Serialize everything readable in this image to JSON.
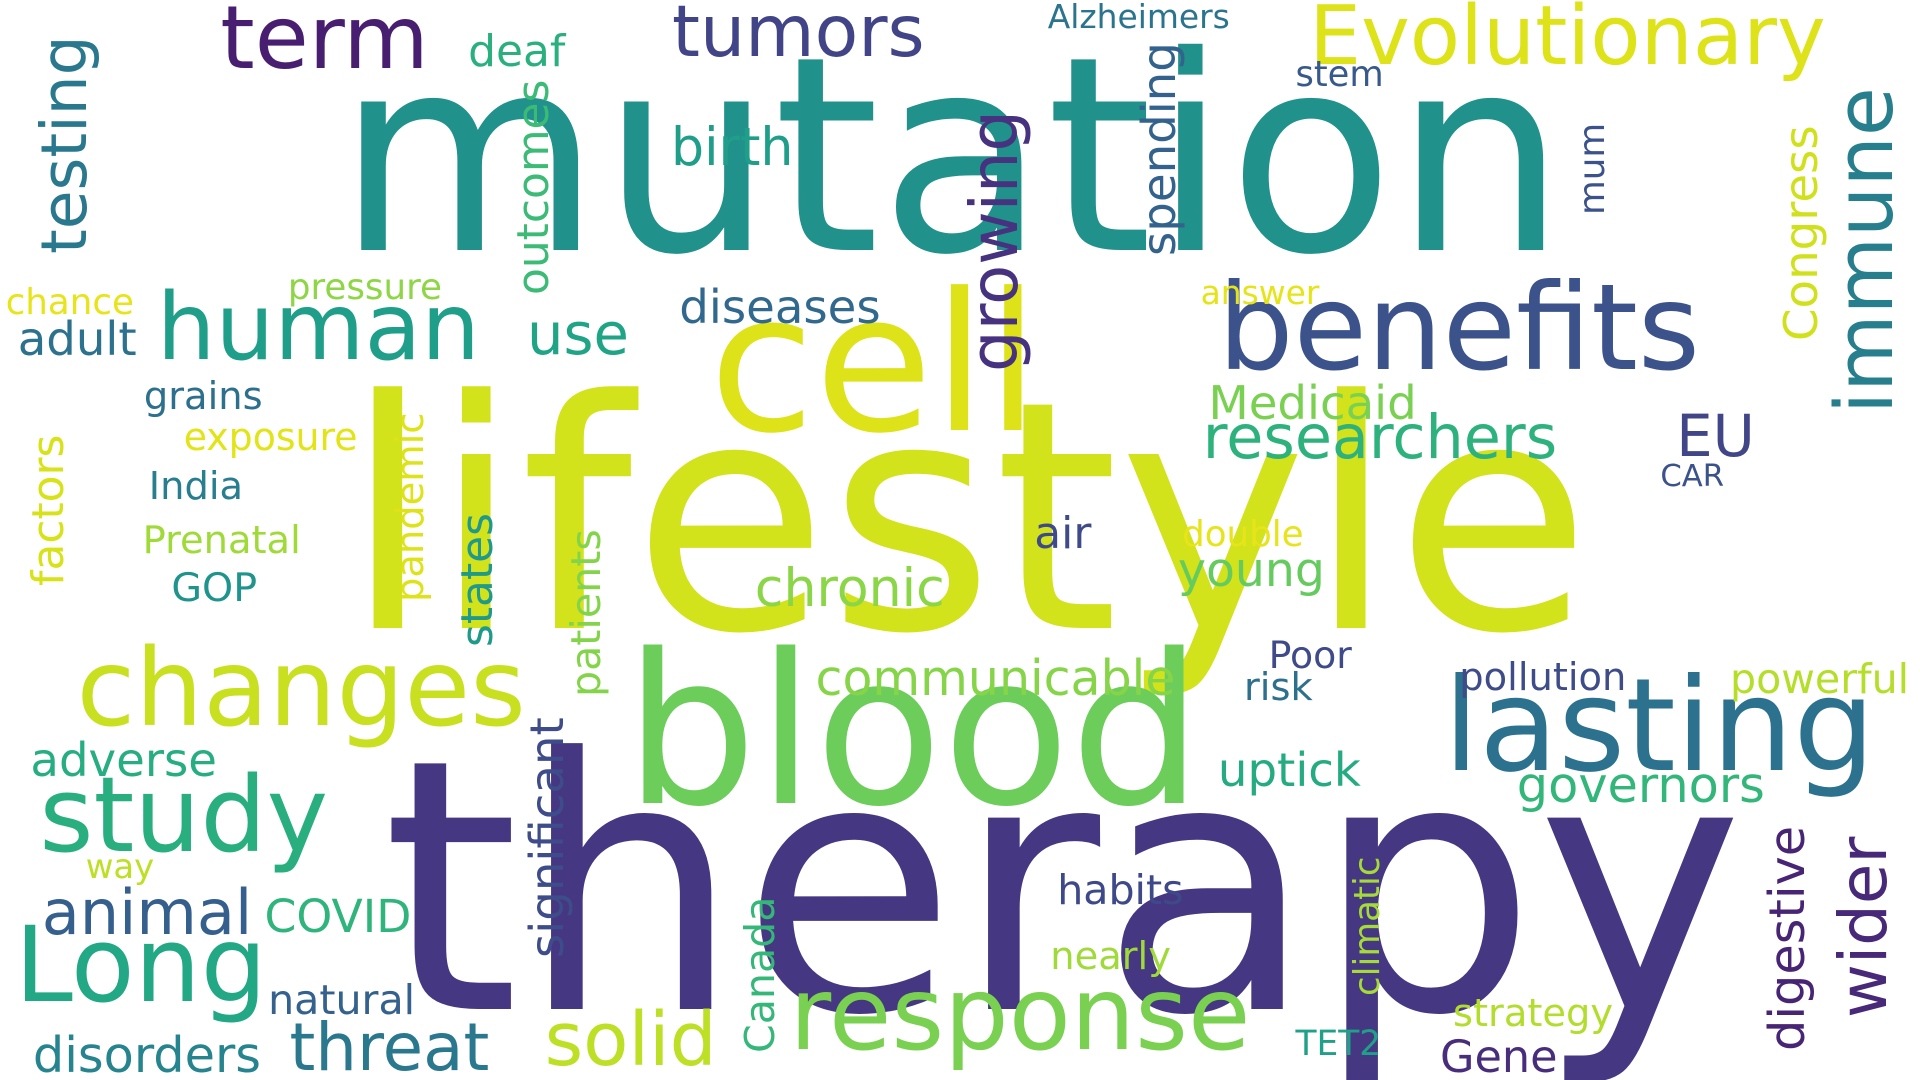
{
  "words": [
    {
      "text": "mutation",
      "color": "#21918c"
    },
    {
      "text": "lifestyle",
      "color": "#d2e21b"
    },
    {
      "text": "therapy",
      "color": "#453781"
    },
    {
      "text": "blood",
      "color": "#6ccd5a"
    },
    {
      "text": "cell",
      "color": "#dde318"
    },
    {
      "text": "benefits",
      "color": "#3b528b"
    },
    {
      "text": "human",
      "color": "#1f9e89"
    },
    {
      "text": "changes",
      "color": "#c8e020"
    },
    {
      "text": "response",
      "color": "#7ad151"
    },
    {
      "text": "lasting",
      "color": "#2c728e"
    },
    {
      "text": "term",
      "color": "#481f70"
    },
    {
      "text": "Long",
      "color": "#22a884"
    },
    {
      "text": "study",
      "color": "#29af7f"
    },
    {
      "text": "Evolutionary",
      "color": "#dde318"
    },
    {
      "text": "immune",
      "color": "#277f8e"
    },
    {
      "text": "tumors",
      "color": "#414487"
    },
    {
      "text": "solid",
      "color": "#bddf26"
    },
    {
      "text": "threat",
      "color": "#2a788e"
    },
    {
      "text": "animal",
      "color": "#355f8d"
    },
    {
      "text": "growing",
      "color": "#46327e"
    },
    {
      "text": "researchers",
      "color": "#2db27d"
    },
    {
      "text": "use",
      "color": "#20a486"
    },
    {
      "text": "testing",
      "color": "#2a788e"
    },
    {
      "text": "outcomes",
      "color": "#3bbb75"
    },
    {
      "text": "diseases",
      "color": "#31688e"
    },
    {
      "text": "spending",
      "color": "#33638d"
    },
    {
      "text": "Congress",
      "color": "#d0e11c"
    },
    {
      "text": "birth",
      "color": "#1f9e89"
    },
    {
      "text": "wider",
      "color": "#482878"
    },
    {
      "text": "digestive",
      "color": "#482475"
    },
    {
      "text": "significant",
      "color": "#3e4c8a"
    },
    {
      "text": "patients",
      "color": "#84d44b"
    },
    {
      "text": "communicable",
      "color": "#86d549"
    },
    {
      "text": "chronic",
      "color": "#8bd646"
    },
    {
      "text": "uptick",
      "color": "#25ab82"
    },
    {
      "text": "governors",
      "color": "#32b67a"
    },
    {
      "text": "young",
      "color": "#65cb5e"
    },
    {
      "text": "states",
      "color": "#1f9a8a"
    },
    {
      "text": "pandemic",
      "color": "#dde318"
    },
    {
      "text": "factors",
      "color": "#d8e219"
    },
    {
      "text": "climatic",
      "color": "#a5db36"
    },
    {
      "text": "Canada",
      "color": "#35b779"
    },
    {
      "text": "EU",
      "color": "#404688"
    },
    {
      "text": "Medicaid",
      "color": "#7ad151"
    },
    {
      "text": "adverse",
      "color": "#26ad81"
    },
    {
      "text": "COVID",
      "color": "#2fb47c"
    },
    {
      "text": "disorders",
      "color": "#25848e"
    },
    {
      "text": "Gene",
      "color": "#472d7b"
    },
    {
      "text": "adult",
      "color": "#2c728e"
    },
    {
      "text": "air",
      "color": "#3e4a89"
    },
    {
      "text": "mum",
      "color": "#3b528b"
    },
    {
      "text": "GOP",
      "color": "#1f948c"
    },
    {
      "text": "deaf",
      "color": "#2ab07f"
    },
    {
      "text": "habits",
      "color": "#3e4989"
    },
    {
      "text": "natural",
      "color": "#34618d"
    },
    {
      "text": "pollution",
      "color": "#3e4c8a"
    },
    {
      "text": "powerful",
      "color": "#b5de2b"
    },
    {
      "text": "pressure",
      "color": "#8ed645"
    },
    {
      "text": "Alzheimers",
      "color": "#2b748e"
    },
    {
      "text": "stem",
      "color": "#38598c"
    },
    {
      "text": "answer",
      "color": "#e5e419"
    },
    {
      "text": "chance",
      "color": "#e7e419"
    },
    {
      "text": "grains",
      "color": "#2d708e"
    },
    {
      "text": "exposure",
      "color": "#e2e418"
    },
    {
      "text": "India",
      "color": "#287d8e"
    },
    {
      "text": "Prenatal",
      "color": "#a0da39"
    },
    {
      "text": "double",
      "color": "#e7e419"
    },
    {
      "text": "CAR",
      "color": "#3b528b"
    },
    {
      "text": "Poor",
      "color": "#3e4a89"
    },
    {
      "text": "risk",
      "color": "#2d708e"
    },
    {
      "text": "way",
      "color": "#bddf26"
    },
    {
      "text": "nearly",
      "color": "#9fda3a"
    },
    {
      "text": "strategy",
      "color": "#b2dd2d"
    },
    {
      "text": "TET2",
      "color": "#1fa088"
    }
  ]
}
